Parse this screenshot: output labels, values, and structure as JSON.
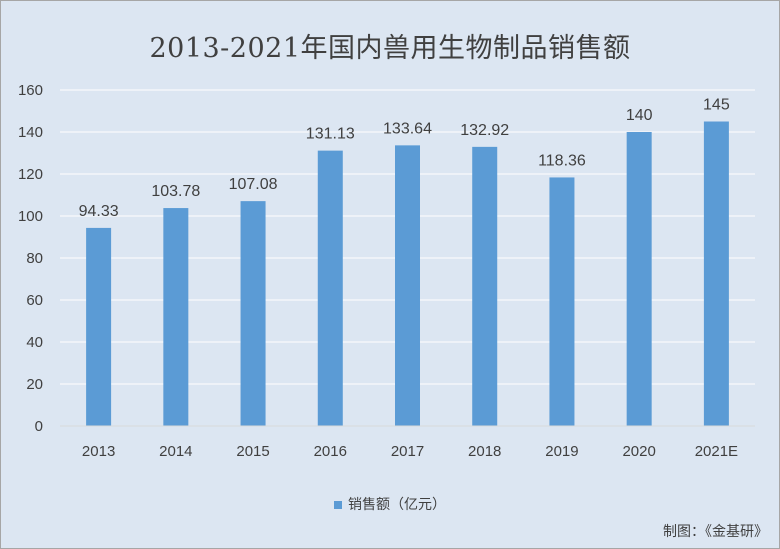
{
  "chart_data": {
    "type": "bar",
    "title": "2013-2021年国内兽用生物制品销售额",
    "categories": [
      "2013",
      "2014",
      "2015",
      "2016",
      "2017",
      "2018",
      "2019",
      "2020",
      "2021E"
    ],
    "series": [
      {
        "name": "销售额（亿元）",
        "values": [
          94.33,
          103.78,
          107.08,
          131.13,
          133.64,
          132.92,
          118.36,
          140,
          145
        ],
        "labels": [
          "94.33",
          "103.78",
          "107.08",
          "131.13",
          "133.64",
          "132.92",
          "118.36",
          "140",
          "145"
        ]
      }
    ],
    "ylim": [
      0,
      160
    ],
    "yticks": [
      "0",
      "20",
      "40",
      "60",
      "80",
      "100",
      "120",
      "140",
      "160"
    ],
    "grid": true,
    "legend_position": "bottom"
  },
  "colors": {
    "bar": "#5b9bd5",
    "background": "#dce6f2",
    "gridline": "#ffffff"
  },
  "source_note": "制图：《金基研》"
}
